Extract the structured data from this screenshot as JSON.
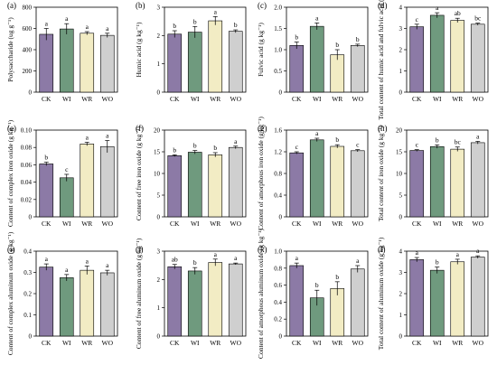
{
  "colors": {
    "CK": "#8c7aa6",
    "WI": "#6f9a7e",
    "WR": "#f2ecc4",
    "WO": "#cfcfcf",
    "stroke": "#000000"
  },
  "chart_data": [
    {
      "type": "bar",
      "panel": "(a)",
      "ylabel": "Polysaccharide (ug g⁻¹)",
      "ylim": [
        0,
        800
      ],
      "yticks": [
        0,
        200,
        400,
        600,
        800
      ],
      "ytick_labels": [
        "0",
        "200",
        "400",
        "600",
        "800"
      ],
      "categories": [
        "CK",
        "WI",
        "WR",
        "WO"
      ],
      "values": [
        545,
        595,
        555,
        535
      ],
      "errors": [
        55,
        50,
        15,
        20
      ],
      "letters": [
        "a",
        "a",
        "a",
        "a"
      ]
    },
    {
      "type": "bar",
      "panel": "(b)",
      "ylabel": "Humic acid (g kg⁻¹)",
      "ylim": [
        0,
        3
      ],
      "yticks": [
        0,
        1,
        2,
        3
      ],
      "ytick_labels": [
        "0",
        "1",
        "2",
        "3"
      ],
      "categories": [
        "CK",
        "WI",
        "WR",
        "WO"
      ],
      "values": [
        2.05,
        2.12,
        2.52,
        2.15
      ],
      "errors": [
        0.12,
        0.2,
        0.15,
        0.05
      ],
      "letters": [
        "b",
        "b",
        "a",
        "b"
      ]
    },
    {
      "type": "bar",
      "panel": "(c)",
      "ylabel": "Fulvic acid (g kg⁻¹)",
      "ylim": [
        0,
        2.0
      ],
      "yticks": [
        0,
        0.5,
        1.0,
        1.5,
        2.0
      ],
      "ytick_labels": [
        "0",
        "0.5",
        "1.0",
        "1.5",
        "2.0"
      ],
      "categories": [
        "CK",
        "WI",
        "WR",
        "WO"
      ],
      "values": [
        1.1,
        1.55,
        0.88,
        1.1
      ],
      "errors": [
        0.08,
        0.08,
        0.12,
        0.03
      ],
      "letters": [
        "b",
        "a",
        "b",
        "b"
      ]
    },
    {
      "type": "bar",
      "panel": "(d)",
      "ylabel": "Total content of humic acid and fulvic acid (g kg⁻¹)",
      "ylim": [
        0,
        4
      ],
      "yticks": [
        0,
        1,
        2,
        3,
        4
      ],
      "ytick_labels": [
        "0",
        "1",
        "2",
        "3",
        "4"
      ],
      "categories": [
        "CK",
        "WI",
        "WR",
        "WO"
      ],
      "values": [
        3.08,
        3.62,
        3.38,
        3.2
      ],
      "errors": [
        0.12,
        0.12,
        0.1,
        0.05
      ],
      "letters": [
        "c",
        "a",
        "ab",
        "bc"
      ]
    },
    {
      "type": "bar",
      "panel": "(e)",
      "ylabel": "Content of complex iron oxide (g kg⁻¹)",
      "ylim": [
        0,
        0.1
      ],
      "yticks": [
        0,
        0.02,
        0.04,
        0.06,
        0.08,
        0.1
      ],
      "ytick_labels": [
        "0",
        "0.02",
        "0.04",
        "0.06",
        "0.08",
        "0.10"
      ],
      "categories": [
        "CK",
        "WI",
        "WR",
        "WO"
      ],
      "values": [
        0.061,
        0.045,
        0.084,
        0.081
      ],
      "errors": [
        0.002,
        0.004,
        0.002,
        0.007
      ],
      "letters": [
        "b",
        "c",
        "a",
        "a"
      ]
    },
    {
      "type": "bar",
      "panel": "(f)",
      "ylabel": "Content of free iron oxide (g kg⁻¹)",
      "ylim": [
        0,
        20
      ],
      "yticks": [
        0,
        5,
        10,
        15,
        20
      ],
      "ytick_labels": [
        "0",
        "5",
        "10",
        "15",
        "20"
      ],
      "categories": [
        "CK",
        "WI",
        "WR",
        "WO"
      ],
      "values": [
        14.1,
        14.9,
        14.3,
        16.0
      ],
      "errors": [
        0.2,
        0.4,
        0.5,
        0.3
      ],
      "letters": [
        "b",
        "b",
        "b",
        "a"
      ]
    },
    {
      "type": "bar",
      "panel": "(g)",
      "ylabel": "Content of amorphous iron oxide (g kg⁻¹)",
      "ylim": [
        0,
        1.6
      ],
      "yticks": [
        0,
        0.4,
        0.8,
        1.2,
        1.6
      ],
      "ytick_labels": [
        "0",
        "0.4",
        "0.8",
        "1.2",
        "1.6"
      ],
      "categories": [
        "CK",
        "WI",
        "WR",
        "WO"
      ],
      "values": [
        1.18,
        1.42,
        1.3,
        1.22
      ],
      "errors": [
        0.02,
        0.03,
        0.03,
        0.02
      ],
      "letters": [
        "c",
        "a",
        "b",
        "c"
      ]
    },
    {
      "type": "bar",
      "panel": "(h)",
      "ylabel": "Total content of iron oxide (g kg⁻¹)",
      "ylim": [
        0,
        20
      ],
      "yticks": [
        0,
        5,
        10,
        15,
        20
      ],
      "ytick_labels": [
        "0",
        "5",
        "10",
        "15",
        "20"
      ],
      "categories": [
        "CK",
        "WI",
        "WR",
        "WO"
      ],
      "values": [
        15.3,
        16.2,
        15.6,
        17.1
      ],
      "errors": [
        0.2,
        0.4,
        0.5,
        0.3
      ],
      "letters": [
        "c",
        "b",
        "bc",
        "a"
      ]
    },
    {
      "type": "bar",
      "panel": "(i)",
      "ylabel": "Content of complex aluminum oxide (g kg⁻¹)",
      "ylim": [
        0,
        0.4
      ],
      "yticks": [
        0,
        0.1,
        0.2,
        0.3,
        0.4
      ],
      "ytick_labels": [
        "0",
        "0.1",
        "0.2",
        "0.3",
        "0.4"
      ],
      "categories": [
        "CK",
        "WI",
        "WR",
        "WO"
      ],
      "values": [
        0.325,
        0.275,
        0.31,
        0.298
      ],
      "errors": [
        0.015,
        0.015,
        0.02,
        0.012
      ],
      "letters": [
        "a",
        "a",
        "a",
        "a"
      ]
    },
    {
      "type": "bar",
      "panel": "(j)",
      "ylabel": "Content of free aluminum oxide (g kg⁻¹)",
      "ylim": [
        0,
        3
      ],
      "yticks": [
        0,
        1,
        2,
        3
      ],
      "ytick_labels": [
        "0",
        "1",
        "2",
        "3"
      ],
      "categories": [
        "CK",
        "WI",
        "WR",
        "WO"
      ],
      "values": [
        2.45,
        2.3,
        2.6,
        2.55
      ],
      "errors": [
        0.08,
        0.12,
        0.12,
        0.03
      ],
      "letters": [
        "ab",
        "b",
        "a",
        "a"
      ]
    },
    {
      "type": "bar",
      "panel": "(k)",
      "ylabel": "Content of amorphous aluminum oxide (g kg⁻¹)",
      "ylim": [
        0,
        1.0
      ],
      "yticks": [
        0,
        0.2,
        0.4,
        0.6,
        0.8,
        1.0
      ],
      "ytick_labels": [
        "0",
        "0.2",
        "0.4",
        "0.6",
        "0.8",
        "1.0"
      ],
      "categories": [
        "CK",
        "WI",
        "WR",
        "WO"
      ],
      "values": [
        0.83,
        0.45,
        0.56,
        0.79
      ],
      "errors": [
        0.03,
        0.09,
        0.08,
        0.04
      ],
      "letters": [
        "a",
        "b",
        "b",
        "a"
      ]
    },
    {
      "type": "bar",
      "panel": "(l)",
      "ylabel": "Total content of aluminum oxide (g kg⁻¹)",
      "ylim": [
        0,
        4
      ],
      "yticks": [
        0,
        1,
        2,
        3,
        4
      ],
      "ytick_labels": [
        "0",
        "1",
        "2",
        "3",
        "4"
      ],
      "categories": [
        "CK",
        "WI",
        "WR",
        "WO"
      ],
      "values": [
        3.6,
        3.1,
        3.5,
        3.72
      ],
      "errors": [
        0.1,
        0.15,
        0.12,
        0.06
      ],
      "letters": [
        "a",
        "b",
        "a",
        "a"
      ]
    }
  ]
}
